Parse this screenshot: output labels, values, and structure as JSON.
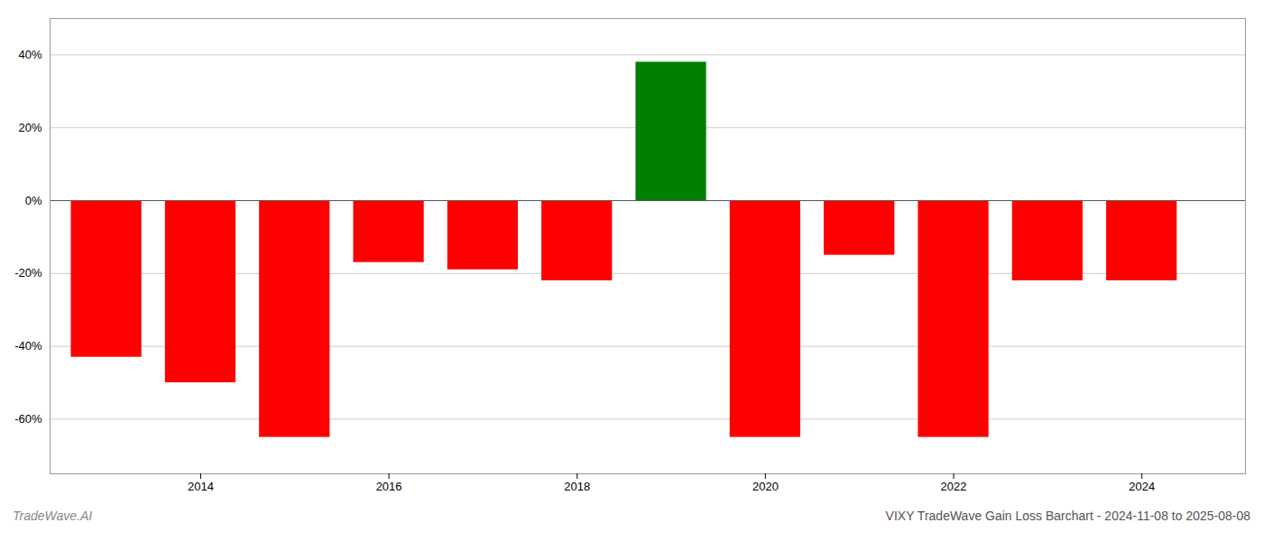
{
  "chart_data": {
    "type": "bar",
    "title": "VIXY TradeWave Gain Loss Barchart - 2024-11-08 to 2025-08-08",
    "annotations": [
      "TradeWave.AI"
    ],
    "x": [
      2013,
      2014,
      2015,
      2016,
      2017,
      2018,
      2019,
      2020,
      2021,
      2022,
      2023,
      2024
    ],
    "values": [
      -43,
      -50,
      -65,
      -17,
      -19,
      -22,
      38,
      -65,
      -15,
      -65,
      -22,
      -22
    ],
    "colors": [
      "#ff0000",
      "#ff0000",
      "#ff0000",
      "#ff0000",
      "#ff0000",
      "#ff0000",
      "#008000",
      "#ff0000",
      "#ff0000",
      "#ff0000",
      "#ff0000",
      "#ff0000"
    ],
    "xlim": [
      2012.4,
      2025.1
    ],
    "xticks": [
      2014,
      2016,
      2018,
      2020,
      2022,
      2024
    ],
    "ylim": [
      -75,
      50
    ],
    "yticks": [
      {
        "value": -60,
        "label": "-60%"
      },
      {
        "value": -40,
        "label": "-40%"
      },
      {
        "value": -20,
        "label": "-20%"
      },
      {
        "value": 0,
        "label": "0%"
      },
      {
        "value": 20,
        "label": "20%"
      },
      {
        "value": 40,
        "label": "40%"
      }
    ],
    "grid": true
  }
}
